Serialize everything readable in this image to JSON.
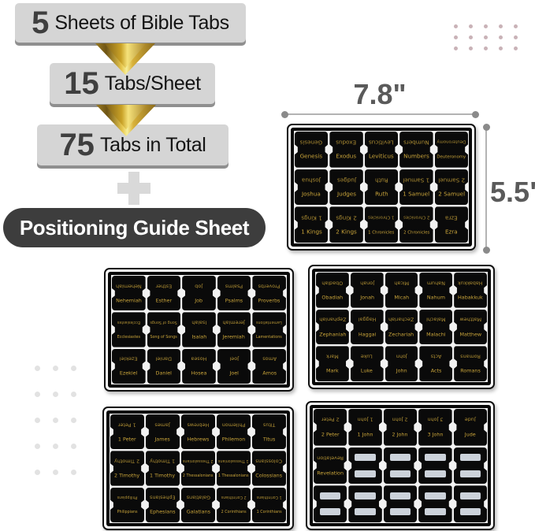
{
  "funnel": {
    "steps": [
      {
        "number": "5",
        "label": "Sheets of Bible Tabs"
      },
      {
        "number": "15",
        "label": "Tabs/Sheet"
      },
      {
        "number": "75",
        "label": "Tabs in Total"
      }
    ],
    "pill_label": "Positioning Guide Sheet"
  },
  "dimensions": {
    "width_label": "7.8\"",
    "height_label": "5.5\""
  },
  "colors": {
    "badge_bg": "#d5d5d5",
    "badge_shadow": "#8f8f8f",
    "pill_bg": "#3d3d3d",
    "arrow_gold": "#c9a227",
    "tab_text_gold": "#c9a43a",
    "tab_black": "#0a0a0a",
    "blank_strip": "#ccd2da",
    "dimension_gray": "#5a5a5a",
    "dots_pink": "#c9b2b7",
    "dots_gray": "#e2e2e2"
  },
  "sheets": [
    {
      "name": "sheet-1",
      "tabs": [
        "Genesis",
        "Exodus",
        "Leviticus",
        "Numbers",
        "Deuteronomy",
        "Joshua",
        "Judges",
        "Ruth",
        "1 Samuel",
        "2 Samuel",
        "1 Kings",
        "2 Kings",
        "1 Chronicles",
        "2 Chronicles",
        "Ezra"
      ]
    },
    {
      "name": "sheet-2",
      "tabs": [
        "Nehemiah",
        "Esther",
        "Job",
        "Psalms",
        "Proverbs",
        "Ecclesiastes",
        "Song of Songs",
        "Isaiah",
        "Jeremiah",
        "Lamentations",
        "Ezekiel",
        "Daniel",
        "Hosea",
        "Joel",
        "Amos"
      ]
    },
    {
      "name": "sheet-3",
      "tabs": [
        "Obadiah",
        "Jonah",
        "Micah",
        "Nahum",
        "Habakkuk",
        "Zephaniah",
        "Haggai",
        "Zechariah",
        "Malachi",
        "Matthew",
        "Mark",
        "Luke",
        "John",
        "Acts",
        "Romans"
      ]
    },
    {
      "name": "sheet-4",
      "tabs": [
        "1 Peter",
        "James",
        "Hebrews",
        "Philemon",
        "Titus",
        "2 Timothy",
        "1 Timothy",
        "2 Thessalonians",
        "1 Thessalonians",
        "Colossians",
        "Philippians",
        "Ephesians",
        "Galatians",
        "2 Corinthians",
        "1 Corinthians"
      ]
    },
    {
      "name": "sheet-5",
      "tabs": [
        "2 Peter",
        "1 John",
        "2 John",
        "3 John",
        "Jude",
        "Revelation",
        "",
        "",
        "",
        "",
        "",
        "",
        "",
        "",
        ""
      ]
    }
  ]
}
